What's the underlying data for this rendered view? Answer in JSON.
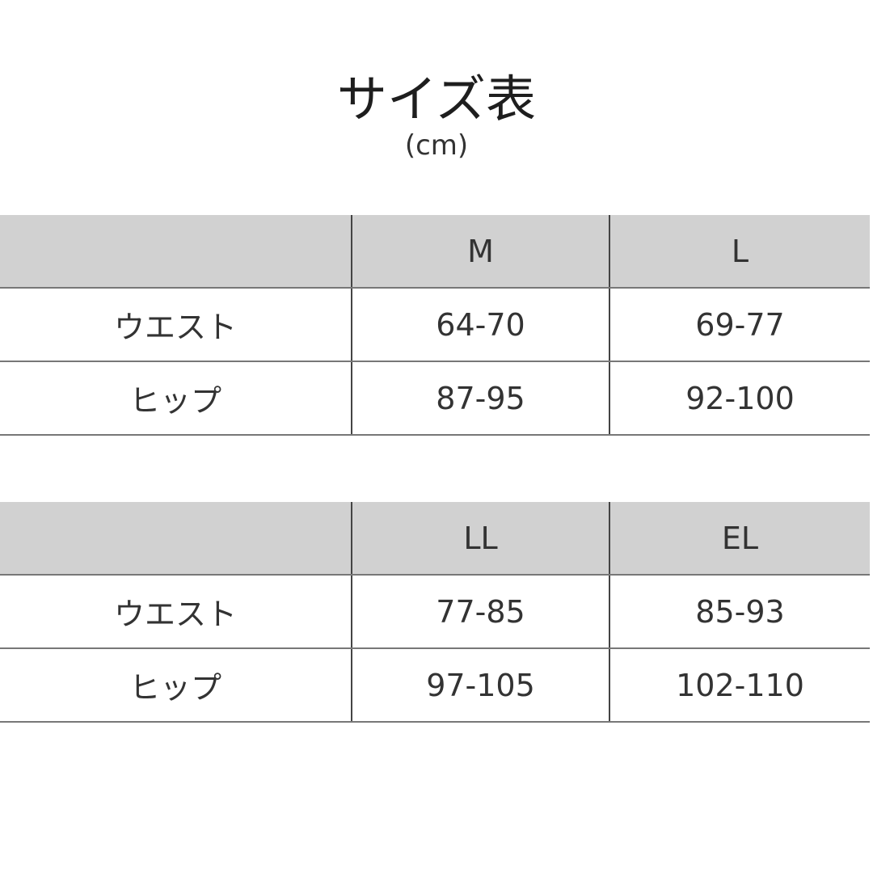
{
  "title": "サイズ表",
  "unit": "(cm)",
  "tables": [
    {
      "headers": [
        "",
        "M",
        "L"
      ],
      "rows": [
        {
          "label": "ウエスト",
          "values": [
            "64-70",
            "69-77"
          ]
        },
        {
          "label": "ヒップ",
          "values": [
            "87-95",
            "92-100"
          ]
        }
      ]
    },
    {
      "headers": [
        "",
        "LL",
        "EL"
      ],
      "rows": [
        {
          "label": "ウエスト",
          "values": [
            "77-85",
            "85-93"
          ]
        },
        {
          "label": "ヒップ",
          "values": [
            "97-105",
            "102-110"
          ]
        }
      ]
    }
  ],
  "colors": {
    "header_bg": "#d1d1d1",
    "text": "#333333"
  }
}
